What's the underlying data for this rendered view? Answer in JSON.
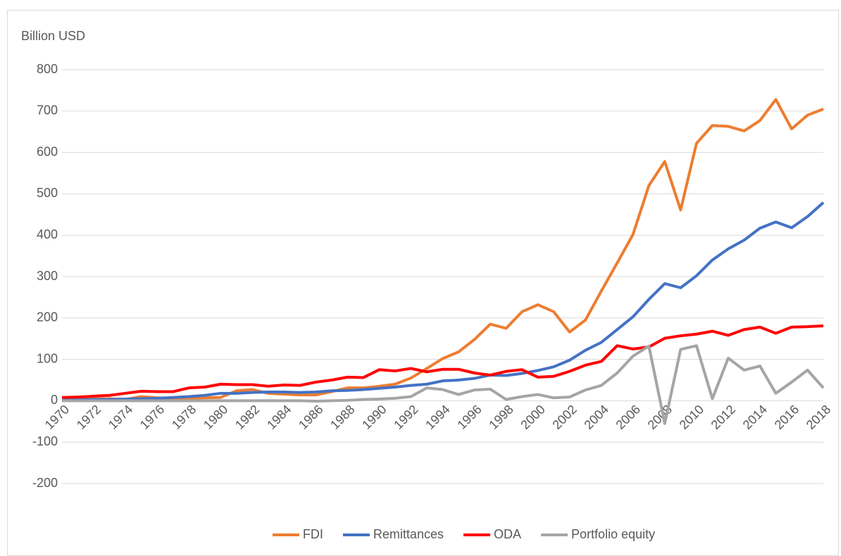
{
  "chart_data": {
    "type": "line",
    "y_label": "Billion USD",
    "x": [
      1970,
      1971,
      1972,
      1973,
      1974,
      1975,
      1976,
      1977,
      1978,
      1979,
      1980,
      1981,
      1982,
      1983,
      1984,
      1985,
      1986,
      1987,
      1988,
      1989,
      1990,
      1991,
      1992,
      1993,
      1994,
      1995,
      1996,
      1997,
      1998,
      1999,
      2000,
      2001,
      2002,
      2003,
      2004,
      2005,
      2006,
      2007,
      2008,
      2009,
      2010,
      2011,
      2012,
      2013,
      2014,
      2015,
      2016,
      2017,
      2018
    ],
    "xlim": [
      1970,
      2018
    ],
    "xticks": [
      1970,
      1972,
      1974,
      1976,
      1978,
      1980,
      1982,
      1984,
      1986,
      1988,
      1990,
      1992,
      1994,
      1996,
      1998,
      2000,
      2002,
      2004,
      2006,
      2008,
      2010,
      2012,
      2014,
      2016,
      2018
    ],
    "ylim": [
      -200,
      800
    ],
    "yticks": [
      -200,
      -100,
      0,
      100,
      200,
      300,
      400,
      500,
      600,
      700,
      800
    ],
    "grid": true,
    "legend": "bottom",
    "series": [
      {
        "name": "FDI",
        "color": "#ed7d31",
        "values": [
          2,
          3,
          4,
          5,
          3,
          10,
          7,
          6,
          6,
          7,
          8,
          24,
          27,
          18,
          16,
          14,
          14,
          22,
          31,
          31,
          35,
          40,
          55,
          78,
          102,
          118,
          148,
          185,
          175,
          215,
          232,
          215,
          166,
          195,
          265,
          333,
          402,
          520,
          578,
          461,
          622,
          665,
          663,
          652,
          677,
          728,
          657,
          690,
          705
        ]
      },
      {
        "name": "Remittances",
        "color": "#4472c4",
        "values": [
          2,
          2,
          3,
          3,
          4,
          5,
          6,
          8,
          10,
          13,
          18,
          18,
          20,
          21,
          21,
          20,
          21,
          24,
          25,
          27,
          30,
          33,
          37,
          40,
          48,
          50,
          54,
          62,
          61,
          66,
          73,
          82,
          98,
          122,
          141,
          172,
          203,
          245,
          283,
          273,
          302,
          340,
          367,
          388,
          417,
          432,
          418,
          445,
          479
        ]
      },
      {
        "name": "ODA",
        "color": "#ff0000",
        "values": [
          8,
          9,
          11,
          13,
          18,
          23,
          22,
          22,
          31,
          33,
          40,
          39,
          39,
          35,
          38,
          37,
          45,
          50,
          57,
          56,
          75,
          72,
          78,
          70,
          76,
          76,
          67,
          62,
          71,
          75,
          57,
          59,
          71,
          86,
          95,
          133,
          125,
          130,
          151,
          157,
          161,
          168,
          158,
          172,
          178,
          163,
          178,
          179,
          181
        ]
      },
      {
        "name": "Portfolio equity",
        "color": "#a5a5a5",
        "values": [
          0,
          0,
          0,
          0,
          0,
          0,
          0,
          0,
          0,
          0,
          0,
          0,
          0,
          0,
          0,
          0,
          -1,
          0,
          1,
          3,
          4,
          6,
          10,
          31,
          27,
          15,
          26,
          28,
          3,
          10,
          15,
          7,
          9,
          26,
          37,
          67,
          108,
          132,
          -55,
          124,
          133,
          5,
          103,
          74,
          84,
          18,
          45,
          74,
          31
        ]
      }
    ]
  }
}
